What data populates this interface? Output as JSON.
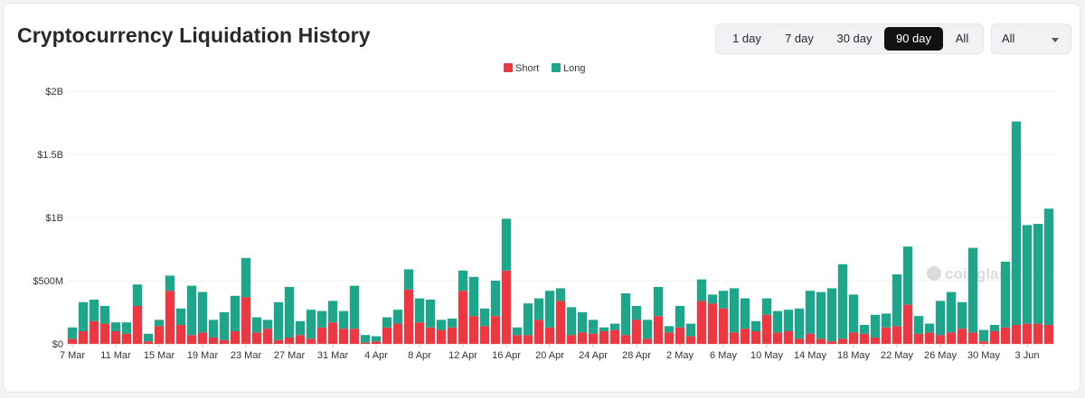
{
  "header": {
    "title": "Cryptocurrency Liquidation History"
  },
  "range_buttons": [
    {
      "label": "1 day"
    },
    {
      "label": "7 day"
    },
    {
      "label": "30 day"
    },
    {
      "label": "90 day"
    },
    {
      "label": "All"
    }
  ],
  "active_range": "90 day",
  "coin_select": {
    "value": "All"
  },
  "watermark": "coinglass",
  "colors": {
    "short": "#ea3943",
    "long": "#1fa589",
    "active_button": "#111111"
  },
  "chart_data": {
    "type": "bar",
    "stacked": true,
    "title": "",
    "xlabel": "",
    "ylabel": "",
    "ylim": [
      0,
      2000000000
    ],
    "y_ticks": [
      {
        "value": 0,
        "label": "$0"
      },
      {
        "value": 500000000,
        "label": "$500M"
      },
      {
        "value": 1000000000,
        "label": "$1B"
      },
      {
        "value": 1500000000,
        "label": "$1.5B"
      },
      {
        "value": 2000000000,
        "label": "$2B"
      }
    ],
    "x_tick_labels": [
      "7 Mar",
      "11 Mar",
      "15 Mar",
      "19 Mar",
      "23 Mar",
      "27 Mar",
      "31 Mar",
      "4 Apr",
      "8 Apr",
      "12 Apr",
      "16 Apr",
      "20 Apr",
      "24 Apr",
      "28 Apr",
      "2 May",
      "6 May",
      "10 May",
      "14 May",
      "18 May",
      "22 May",
      "26 May",
      "30 May",
      "3 Jun"
    ],
    "grid": true,
    "legend_position": "top-center",
    "categories": [
      "7 Mar",
      "8 Mar",
      "9 Mar",
      "10 Mar",
      "11 Mar",
      "12 Mar",
      "13 Mar",
      "14 Mar",
      "15 Mar",
      "16 Mar",
      "17 Mar",
      "18 Mar",
      "19 Mar",
      "20 Mar",
      "21 Mar",
      "22 Mar",
      "23 Mar",
      "24 Mar",
      "25 Mar",
      "26 Mar",
      "27 Mar",
      "28 Mar",
      "29 Mar",
      "30 Mar",
      "31 Mar",
      "1 Apr",
      "2 Apr",
      "3 Apr",
      "4 Apr",
      "5 Apr",
      "6 Apr",
      "7 Apr",
      "8 Apr",
      "9 Apr",
      "10 Apr",
      "11 Apr",
      "12 Apr",
      "13 Apr",
      "14 Apr",
      "15 Apr",
      "16 Apr",
      "17 Apr",
      "18 Apr",
      "19 Apr",
      "20 Apr",
      "21 Apr",
      "22 Apr",
      "23 Apr",
      "24 Apr",
      "25 Apr",
      "26 Apr",
      "27 Apr",
      "28 Apr",
      "29 Apr",
      "30 Apr",
      "1 May",
      "2 May",
      "3 May",
      "4 May",
      "5 May",
      "6 May",
      "7 May",
      "8 May",
      "9 May",
      "10 May",
      "11 May",
      "12 May",
      "13 May",
      "14 May",
      "15 May",
      "16 May",
      "17 May",
      "18 May",
      "19 May",
      "20 May",
      "21 May",
      "22 May",
      "23 May",
      "24 May",
      "25 May",
      "26 May",
      "27 May",
      "28 May",
      "29 May",
      "30 May",
      "31 May",
      "1 Jun",
      "2 Jun",
      "3 Jun",
      "4 Jun",
      "5 Jun"
    ],
    "series": [
      {
        "name": "Short",
        "color": "#ea3943",
        "values": [
          0.04,
          0.1,
          0.18,
          0.16,
          0.1,
          0.08,
          0.3,
          0.02,
          0.14,
          0.42,
          0.15,
          0.07,
          0.09,
          0.05,
          0.03,
          0.1,
          0.37,
          0.09,
          0.12,
          0.03,
          0.05,
          0.07,
          0.04,
          0.13,
          0.17,
          0.12,
          0.12,
          0.01,
          0.02,
          0.13,
          0.16,
          0.43,
          0.17,
          0.13,
          0.11,
          0.13,
          0.42,
          0.22,
          0.14,
          0.22,
          0.58,
          0.07,
          0.07,
          0.19,
          0.13,
          0.34,
          0.07,
          0.09,
          0.08,
          0.1,
          0.11,
          0.07,
          0.19,
          0.04,
          0.22,
          0.09,
          0.13,
          0.06,
          0.34,
          0.32,
          0.28,
          0.09,
          0.12,
          0.1,
          0.23,
          0.09,
          0.1,
          0.04,
          0.08,
          0.04,
          0.02,
          0.04,
          0.09,
          0.08,
          0.05,
          0.13,
          0.14,
          0.31,
          0.08,
          0.09,
          0.07,
          0.09,
          0.12,
          0.09,
          0.02,
          0.1,
          0.13,
          0.15,
          0.16,
          0.16,
          0.15
        ]
      },
      {
        "name": "Long",
        "color": "#1fa589",
        "values": [
          0.09,
          0.23,
          0.17,
          0.14,
          0.07,
          0.09,
          0.17,
          0.06,
          0.05,
          0.12,
          0.13,
          0.39,
          0.32,
          0.14,
          0.22,
          0.28,
          0.31,
          0.12,
          0.07,
          0.3,
          0.4,
          0.11,
          0.23,
          0.13,
          0.17,
          0.14,
          0.34,
          0.06,
          0.04,
          0.08,
          0.11,
          0.16,
          0.19,
          0.22,
          0.08,
          0.07,
          0.16,
          0.31,
          0.14,
          0.28,
          0.41,
          0.06,
          0.25,
          0.17,
          0.29,
          0.1,
          0.22,
          0.16,
          0.11,
          0.03,
          0.05,
          0.33,
          0.11,
          0.15,
          0.23,
          0.05,
          0.17,
          0.1,
          0.17,
          0.07,
          0.14,
          0.35,
          0.24,
          0.08,
          0.13,
          0.17,
          0.17,
          0.24,
          0.34,
          0.37,
          0.42,
          0.59,
          0.3,
          0.07,
          0.18,
          0.11,
          0.41,
          0.46,
          0.14,
          0.07,
          0.27,
          0.32,
          0.21,
          0.67,
          0.09,
          0.05,
          0.52,
          1.61,
          0.78,
          0.79,
          0.92
        ]
      }
    ],
    "value_unit_note": "values in billions USD"
  }
}
